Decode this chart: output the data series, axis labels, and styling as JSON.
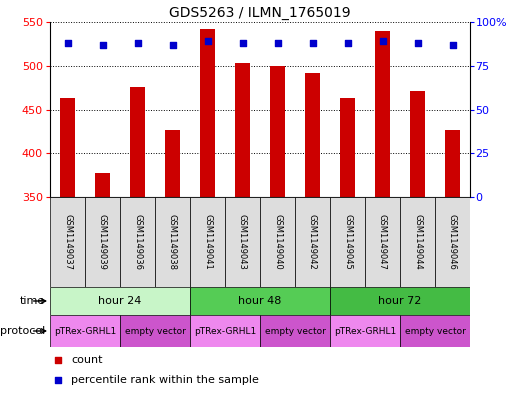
{
  "title": "GDS5263 / ILMN_1765019",
  "samples": [
    "GSM1149037",
    "GSM1149039",
    "GSM1149036",
    "GSM1149038",
    "GSM1149041",
    "GSM1149043",
    "GSM1149040",
    "GSM1149042",
    "GSM1149045",
    "GSM1149047",
    "GSM1149044",
    "GSM1149046"
  ],
  "counts": [
    463,
    377,
    476,
    427,
    542,
    503,
    500,
    492,
    463,
    540,
    471,
    427
  ],
  "percentile_ranks": [
    88,
    87,
    88,
    87,
    89,
    88,
    88,
    88,
    88,
    89,
    88,
    87
  ],
  "ylim_left": [
    350,
    550
  ],
  "ylim_right": [
    0,
    100
  ],
  "yticks_left": [
    350,
    400,
    450,
    500,
    550
  ],
  "yticks_right": [
    0,
    25,
    50,
    75,
    100
  ],
  "bar_color": "#cc0000",
  "dot_color": "#0000cc",
  "time_groups": [
    {
      "label": "hour 24",
      "start": 0,
      "end": 4,
      "color": "#c8f5c8"
    },
    {
      "label": "hour 48",
      "start": 4,
      "end": 8,
      "color": "#55cc55"
    },
    {
      "label": "hour 72",
      "start": 8,
      "end": 12,
      "color": "#44bb44"
    }
  ],
  "protocol_groups": [
    {
      "label": "pTRex-GRHL1",
      "start": 0,
      "end": 2,
      "color": "#ee88ee"
    },
    {
      "label": "empty vector",
      "start": 2,
      "end": 4,
      "color": "#cc55cc"
    },
    {
      "label": "pTRex-GRHL1",
      "start": 4,
      "end": 6,
      "color": "#ee88ee"
    },
    {
      "label": "empty vector",
      "start": 6,
      "end": 8,
      "color": "#cc55cc"
    },
    {
      "label": "pTRex-GRHL1",
      "start": 8,
      "end": 10,
      "color": "#ee88ee"
    },
    {
      "label": "empty vector",
      "start": 10,
      "end": 12,
      "color": "#cc55cc"
    }
  ],
  "sample_box_color": "#dddddd",
  "legend_count_color": "#cc0000",
  "legend_dot_color": "#0000cc",
  "background_color": "#ffffff"
}
